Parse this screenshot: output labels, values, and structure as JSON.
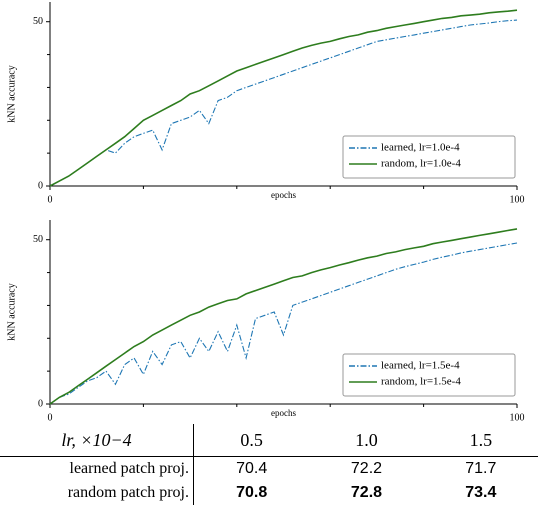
{
  "chart_data": [
    {
      "type": "line",
      "xlabel": "epochs",
      "ylabel": "kNN accuracy",
      "xlim": [
        0,
        100
      ],
      "ylim": [
        0,
        56
      ],
      "xticks": [
        0,
        100
      ],
      "yticks": [
        0,
        50
      ],
      "xminorticks": [
        20,
        40,
        60,
        80
      ],
      "yminorticks": [
        10,
        20,
        30,
        40
      ],
      "legend": "lower right",
      "x": [
        0,
        2,
        4,
        6,
        8,
        10,
        12,
        14,
        16,
        18,
        20,
        22,
        24,
        26,
        28,
        30,
        32,
        34,
        36,
        38,
        40,
        42,
        44,
        46,
        48,
        50,
        52,
        54,
        56,
        58,
        60,
        62,
        64,
        66,
        68,
        70,
        72,
        74,
        76,
        78,
        80,
        82,
        84,
        86,
        88,
        90,
        92,
        94,
        96,
        98,
        100
      ],
      "series": [
        {
          "name": "learned, lr=1.0e-4",
          "color": "#1f77b4",
          "linestyle": "dashdot",
          "values": [
            0,
            1.5,
            3,
            5,
            7,
            9,
            11,
            10,
            13,
            15,
            16,
            17,
            11,
            19,
            20,
            21,
            23,
            19,
            26,
            27,
            29,
            30,
            31,
            32,
            33,
            34,
            35,
            36,
            37,
            38,
            39,
            40,
            41,
            42,
            43,
            44,
            44.5,
            45,
            45.5,
            46,
            46.5,
            47,
            47.5,
            48,
            48.5,
            49,
            49.3,
            49.6,
            50,
            50.3,
            50.5
          ]
        },
        {
          "name": "random, lr=1.0e-4",
          "color": "#2e7d1e",
          "linestyle": "solid",
          "values": [
            0,
            1.5,
            3,
            5,
            7,
            9,
            11,
            13,
            15,
            17.5,
            20,
            21.5,
            23,
            24.5,
            26,
            28,
            29,
            30.5,
            32,
            33.5,
            35,
            36,
            37,
            38,
            39,
            40,
            41,
            42,
            42.8,
            43.5,
            44,
            44.8,
            45.5,
            46,
            46.8,
            47.3,
            48,
            48.5,
            49,
            49.5,
            50,
            50.5,
            51,
            51.3,
            51.8,
            52,
            52.3,
            52.7,
            53,
            53.2,
            53.5
          ]
        }
      ]
    },
    {
      "type": "line",
      "xlabel": "epochs",
      "ylabel": "kNN accuracy",
      "xlim": [
        0,
        100
      ],
      "ylim": [
        0,
        56
      ],
      "xticks": [
        0,
        100
      ],
      "yticks": [
        0,
        50
      ],
      "xminorticks": [
        20,
        40,
        60,
        80
      ],
      "yminorticks": [
        10,
        20,
        30,
        40
      ],
      "legend": "lower right",
      "x": [
        0,
        2,
        4,
        6,
        8,
        10,
        12,
        14,
        16,
        18,
        20,
        22,
        24,
        26,
        28,
        30,
        32,
        34,
        36,
        38,
        40,
        42,
        44,
        46,
        48,
        50,
        52,
        54,
        56,
        58,
        60,
        62,
        64,
        66,
        68,
        70,
        72,
        74,
        76,
        78,
        80,
        82,
        84,
        86,
        88,
        90,
        92,
        94,
        96,
        98,
        100
      ],
      "series": [
        {
          "name": "learned, lr=1.5e-4",
          "color": "#1f77b4",
          "linestyle": "dashdot",
          "values": [
            0,
            2,
            3,
            5,
            7,
            8,
            10,
            6,
            12,
            14,
            9,
            16,
            12,
            18,
            19,
            14,
            20,
            16,
            22,
            16,
            24,
            14,
            26,
            27,
            28,
            21,
            30,
            31,
            32,
            33,
            34,
            35,
            36,
            37,
            38,
            39,
            40,
            41,
            41.8,
            42.5,
            43.2,
            44,
            44.7,
            45.3,
            46,
            46.5,
            47,
            47.5,
            48,
            48.5,
            49
          ]
        },
        {
          "name": "random, lr=1.5e-4",
          "color": "#2e7d1e",
          "linestyle": "solid",
          "values": [
            0,
            2,
            3.5,
            5.5,
            7.5,
            9.5,
            11.5,
            13.5,
            15.5,
            17.5,
            19,
            21,
            22.5,
            24,
            25.5,
            27,
            28,
            29.5,
            30.5,
            31.5,
            32,
            33.5,
            34.5,
            35.5,
            36.5,
            37.5,
            38.5,
            39,
            40,
            40.8,
            41.5,
            42.3,
            43,
            43.8,
            44.5,
            45,
            45.8,
            46.3,
            47,
            47.5,
            48,
            48.8,
            49.3,
            49.8,
            50.3,
            50.8,
            51.3,
            51.8,
            52.3,
            52.8,
            53.3
          ]
        }
      ]
    }
  ],
  "table": {
    "header": [
      "lr, ×10−4",
      "0.5",
      "1.0",
      "1.5"
    ],
    "rows": [
      [
        "learned patch proj.",
        "70.4",
        "72.2",
        "71.7"
      ],
      [
        "random patch proj.",
        "70.8",
        "72.8",
        "73.4"
      ]
    ]
  }
}
